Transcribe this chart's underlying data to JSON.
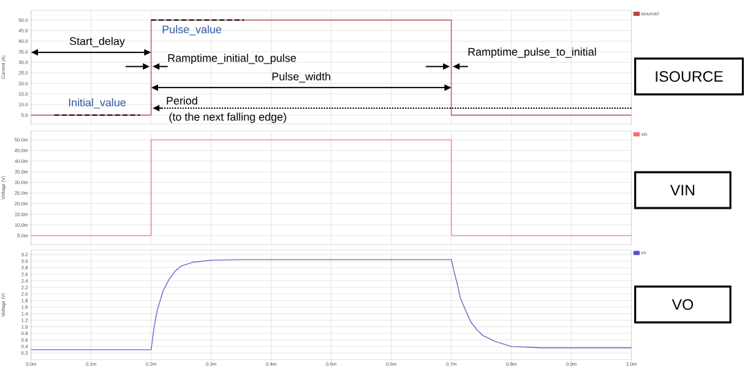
{
  "chart_data": [
    {
      "type": "line",
      "ylabel": "Current (A)",
      "x": [
        0,
        0.2,
        0.2,
        0.7,
        0.7,
        1
      ],
      "series": [
        {
          "name": "isource/i",
          "color": "#b5443f",
          "values": [
            5,
            5,
            50,
            50,
            5,
            5
          ]
        }
      ],
      "xlim": [
        0,
        1
      ],
      "xticks": [
        {
          "value": 0,
          "label": null
        },
        {
          "value": 0.1,
          "label": null
        },
        {
          "value": 0.2,
          "label": null
        },
        {
          "value": 0.3,
          "label": null
        },
        {
          "value": 0.4,
          "label": null
        },
        {
          "value": 0.5,
          "label": null
        },
        {
          "value": 0.6,
          "label": null
        },
        {
          "value": 0.7,
          "label": null
        },
        {
          "value": 0.8,
          "label": null
        },
        {
          "value": 0.9,
          "label": null
        },
        {
          "value": 1,
          "label": null
        }
      ],
      "ylim": [
        0.8,
        54.6
      ],
      "yticks": [
        {
          "value": 5,
          "label": "5.0"
        },
        {
          "value": 10,
          "label": "10.0"
        },
        {
          "value": 15,
          "label": "15.0"
        },
        {
          "value": 20,
          "label": "20.0"
        },
        {
          "value": 25,
          "label": "25.0"
        },
        {
          "value": 30,
          "label": "30.0"
        },
        {
          "value": 35,
          "label": "35.0"
        },
        {
          "value": 40,
          "label": "40.0"
        },
        {
          "value": 45,
          "label": "45.0"
        },
        {
          "value": 50,
          "label": "50.0"
        }
      ],
      "grid": true,
      "legend": "top right",
      "tick_labels": "y",
      "annotations": [
        "Start_delay",
        {
          "text": "Pulse_value",
          "x": 0.2,
          "y": 50
        },
        {
          "text": "Ramptime_initial_to_pulse",
          "x": 0.2,
          "y": 28
        },
        "Pulse_width",
        {
          "text": "Ramptime_pulse_to_initial",
          "x": 0.7,
          "y": 28
        },
        {
          "text": "Initial_value",
          "x": 0.11,
          "y": 5
        },
        {
          "text": "Period",
          "x": 0.2,
          "y": 8.3
        },
        {
          "text": "(to the next falling edge)",
          "x": 0.2,
          "y": 8.3
        },
        "ISOURCE"
      ]
    },
    {
      "type": "line",
      "ylabel": "Voltage (V)",
      "x": [
        0,
        0.2,
        0.2,
        0.7,
        0.7,
        1
      ],
      "series": [
        {
          "name": "vin",
          "color": "#ff6b6b",
          "values": [
            5,
            5,
            50,
            50,
            5,
            5
          ]
        }
      ],
      "xlim": [
        0,
        1
      ],
      "xticks": [
        {
          "value": 0,
          "label": null
        },
        {
          "value": 0.1,
          "label": null
        },
        {
          "value": 0.2,
          "label": null
        },
        {
          "value": 0.3,
          "label": null
        },
        {
          "value": 0.4,
          "label": null
        },
        {
          "value": 0.5,
          "label": null
        },
        {
          "value": 0.6,
          "label": null
        },
        {
          "value": 0.7,
          "label": null
        },
        {
          "value": 0.8,
          "label": null
        },
        {
          "value": 0.9,
          "label": null
        },
        {
          "value": 1,
          "label": null
        }
      ],
      "ylim": [
        0.8,
        54.2
      ],
      "yticks": [
        {
          "value": 5,
          "label": "5.0m"
        },
        {
          "value": 10,
          "label": "10.0m"
        },
        {
          "value": 15,
          "label": "15.0m"
        },
        {
          "value": 20,
          "label": "20.0m"
        },
        {
          "value": 25,
          "label": "25.0m"
        },
        {
          "value": 30,
          "label": "30.0m"
        },
        {
          "value": 35,
          "label": "35.0m"
        },
        {
          "value": 40,
          "label": "40.0m"
        },
        {
          "value": 45,
          "label": "45.0m"
        },
        {
          "value": 50,
          "label": "50.0m"
        }
      ],
      "grid": true,
      "legend": "top right",
      "tick_labels": "y",
      "annotations": [
        "VIN"
      ]
    },
    {
      "type": "line",
      "ylabel": "Voltage (V)",
      "x": [
        0,
        0.2,
        0.205,
        0.21,
        0.22,
        0.23,
        0.24,
        0.25,
        0.27,
        0.3,
        0.35,
        0.7,
        0.705,
        0.71,
        0.715,
        0.725,
        0.733,
        0.743,
        0.753,
        0.772,
        0.8,
        0.85,
        1
      ],
      "series": [
        {
          "name": "vo",
          "color": "#5252cc",
          "values": [
            0.3,
            0.3,
            1.0,
            1.5,
            2.1,
            2.45,
            2.7,
            2.85,
            2.97,
            3.03,
            3.05,
            3.05,
            2.65,
            2.3,
            1.88,
            1.45,
            1.13,
            0.9,
            0.73,
            0.56,
            0.4,
            0.36,
            0.36
          ]
        }
      ],
      "xlim": [
        0,
        1
      ],
      "xticks": [
        {
          "value": 0,
          "label": "0.0m"
        },
        {
          "value": 0.1,
          "label": "0.1m"
        },
        {
          "value": 0.2,
          "label": "0.2m"
        },
        {
          "value": 0.3,
          "label": "0.3m"
        },
        {
          "value": 0.4,
          "label": "0.4m"
        },
        {
          "value": 0.5,
          "label": "0.5m"
        },
        {
          "value": 0.6,
          "label": "0.6m"
        },
        {
          "value": 0.7,
          "label": "0.7m"
        },
        {
          "value": 0.8,
          "label": "0.8m"
        },
        {
          "value": 0.9,
          "label": "0.9m"
        },
        {
          "value": 1,
          "label": "1.0m"
        }
      ],
      "ylim": [
        0,
        3.34
      ],
      "yticks": [
        0.2,
        0.4,
        0.6,
        0.8,
        {
          "value": 1,
          "label": "1.0"
        },
        1.2,
        1.4,
        1.6,
        1.8,
        {
          "value": 2,
          "label": "2.0"
        },
        2.2,
        2.4,
        2.6,
        2.8,
        {
          "value": 3,
          "label": "3.0"
        },
        3.2
      ],
      "grid": true,
      "legend": "top right",
      "annotations": [
        "VO"
      ]
    }
  ]
}
